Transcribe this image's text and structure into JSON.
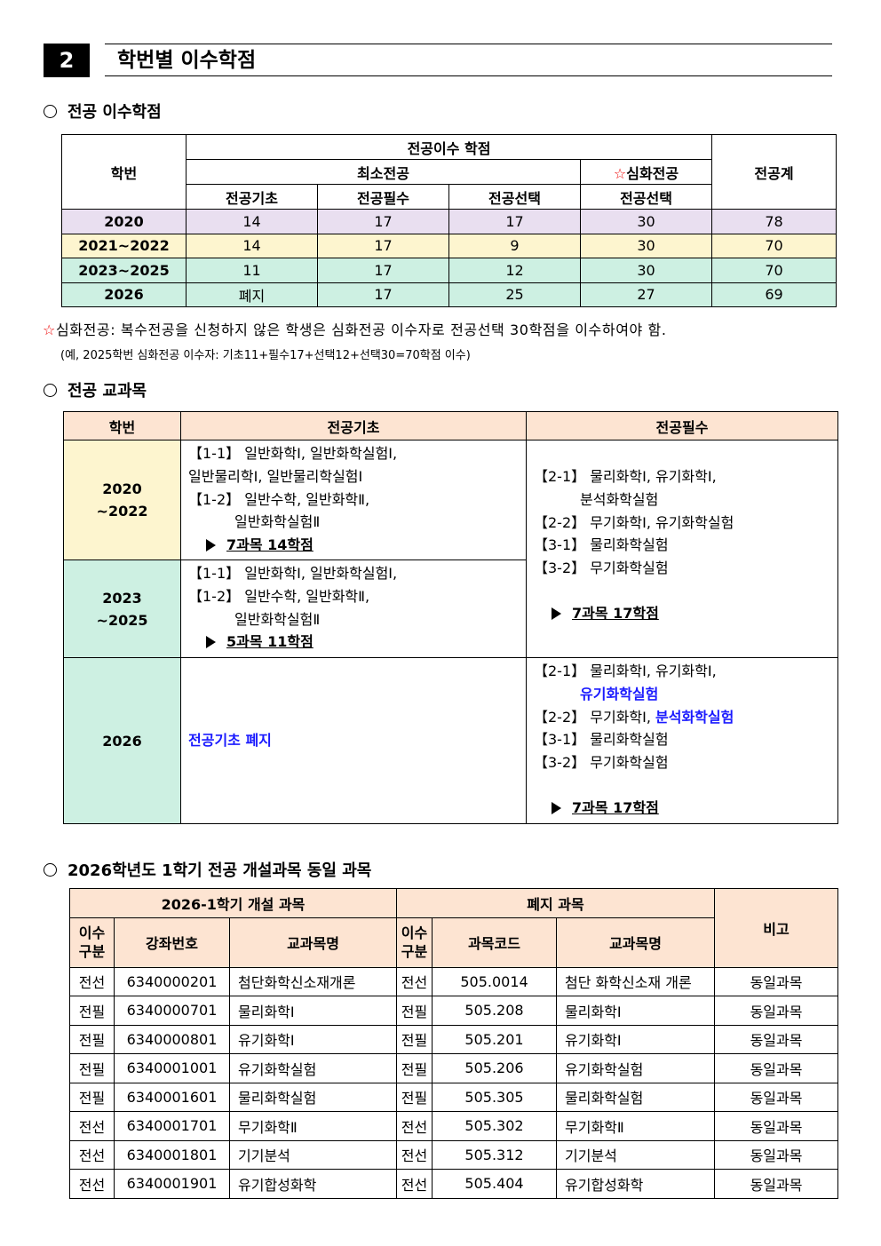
{
  "section": {
    "number": "2",
    "title": "학번별 이수학점"
  },
  "major_credits": {
    "heading": "전공 이수학점",
    "headers": {
      "year": "학번",
      "group": "전공이수 학점",
      "min": "최소전공",
      "deep": "심화전공",
      "total": "전공계",
      "basic": "전공기초",
      "required": "전공필수",
      "elective": "전공선택",
      "deep_elective": "전공선택"
    },
    "star": "☆",
    "rows": [
      {
        "year": "2020",
        "basic": "14",
        "required": "17",
        "elective": "17",
        "deep": "30",
        "total": "78"
      },
      {
        "year": "2021~2022",
        "basic": "14",
        "required": "17",
        "elective": "9",
        "deep": "30",
        "total": "70"
      },
      {
        "year": "2023~2025",
        "basic": "11",
        "required": "17",
        "elective": "12",
        "deep": "30",
        "total": "70"
      },
      {
        "year": "2026",
        "basic": "폐지",
        "required": "17",
        "elective": "25",
        "deep": "27",
        "total": "69"
      }
    ],
    "row_colors": [
      "#e9dff0",
      "#fdf5cf",
      "#cdf0e2",
      "#cdf0e2"
    ],
    "note": "심화전공: 복수전공을 신청하지 않은 학생은 심화전공 이수자로 전공선택 30학점을 이수하여야 함.",
    "example": "(예, 2025학번 심화전공 이수자: 기초11+필수17+선택12+선택30=70학점 이수)"
  },
  "major_courses": {
    "heading": "전공 교과목",
    "headers": {
      "year": "학번",
      "basic": "전공기초",
      "required": "전공필수"
    },
    "rows": [
      {
        "year1": "2020",
        "year2": "~2022",
        "basic": [
          {
            "t": "【1-1】 일반화학Ⅰ, 일반화학실험Ⅰ,"
          },
          {
            "t": "일반물리학Ⅰ, 일반물리학실험Ⅰ"
          },
          {
            "t": "【1-2】 일반수학, 일반화학Ⅱ,"
          },
          {
            "t": "일반화학실험Ⅱ",
            "ind": true
          }
        ],
        "basic_sum": "7과목  14학점"
      },
      {
        "year1": "2023",
        "year2": "~2025",
        "basic": [
          {
            "t": "【1-1】 일반화학Ⅰ, 일반화학실험Ⅰ,"
          },
          {
            "t": "【1-2】 일반수학, 일반화학Ⅱ,"
          },
          {
            "t": "일반화학실험Ⅱ",
            "ind": true
          }
        ],
        "basic_sum": "5과목  11학점"
      },
      {
        "year1": "2026",
        "basic_text": "전공기초  폐지"
      }
    ],
    "required_old": [
      {
        "t": "【2-1】 물리화학Ⅰ, 유기화학Ⅰ,"
      },
      {
        "t": "분석화학실험",
        "ind": true
      },
      {
        "t": "【2-2】 무기화학Ⅰ, 유기화학실험"
      },
      {
        "t": "【3-1】 물리화학실험"
      },
      {
        "t": "【3-2】 무기화학실험"
      }
    ],
    "required_old_sum": "7과목  17학점",
    "required_new": [
      {
        "t": "【2-1】 물리화학Ⅰ, 유기화학Ⅰ,"
      },
      {
        "t": "",
        "b": "유기화학실험",
        "ind": true
      },
      {
        "t": "【2-2】 무기화학Ⅰ, ",
        "b": "분석화학실험"
      },
      {
        "t": "【3-1】 물리화학실험"
      },
      {
        "t": "【3-2】 무기화학실험"
      }
    ],
    "required_new_sum": "7과목  17학점",
    "highlight_color": "#1a1aff"
  },
  "same_courses": {
    "heading": "2026학년도 1학기 전공 개설과목 동일 과목",
    "headers": {
      "opened": "2026-1학기 개설 과목",
      "closed": "폐지 과목",
      "note": "비고",
      "type": "이수 구분",
      "lecture_no": "강좌번호",
      "name": "교과목명",
      "code": "과목코드"
    },
    "rows": [
      [
        "전선",
        "6340000201",
        "첨단화학신소재개론",
        "전선",
        "505.0014",
        "첨단 화학신소재 개론",
        "동일과목"
      ],
      [
        "전필",
        "6340000701",
        "물리화학Ⅰ",
        "전필",
        "505.208",
        "물리화학Ⅰ",
        "동일과목"
      ],
      [
        "전필",
        "6340000801",
        "유기화학Ⅰ",
        "전필",
        "505.201",
        "유기화학Ⅰ",
        "동일과목"
      ],
      [
        "전필",
        "6340001001",
        "유기화학실험",
        "전필",
        "505.206",
        "유기화학실험",
        "동일과목"
      ],
      [
        "전필",
        "6340001601",
        "물리화학실험",
        "전필",
        "505.305",
        "물리화학실험",
        "동일과목"
      ],
      [
        "전선",
        "6340001701",
        "무기화학Ⅱ",
        "전선",
        "505.302",
        "무기화학Ⅱ",
        "동일과목"
      ],
      [
        "전선",
        "6340001801",
        "기기분석",
        "전선",
        "505.312",
        "기기분석",
        "동일과목"
      ],
      [
        "전선",
        "6340001901",
        "유기합성화학",
        "전선",
        "505.404",
        "유기합성화학",
        "동일과목"
      ]
    ]
  }
}
